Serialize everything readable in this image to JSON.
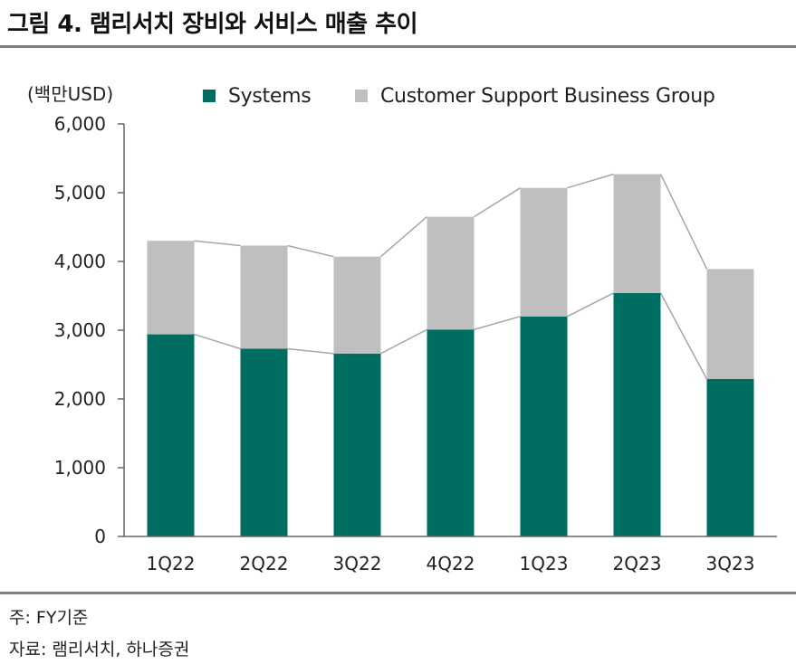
{
  "title": "그림 4. 램리서치 장비와 서비스 매출 추이",
  "unit_label": "(백만USD)",
  "notes": {
    "note": "주: FY기준",
    "source": "자료: 램리서치, 하나증권"
  },
  "colors": {
    "systems": "#006d61",
    "csbg": "#bfbfbf",
    "connector": "#a6a6a6",
    "axis": "#666666"
  },
  "chart_data": {
    "type": "bar",
    "stacked": true,
    "categories": [
      "1Q22",
      "2Q22",
      "3Q22",
      "4Q22",
      "1Q23",
      "2Q23",
      "3Q23"
    ],
    "series": [
      {
        "name": "Systems",
        "values": [
          2940,
          2730,
          2660,
          3010,
          3200,
          3540,
          2290
        ]
      },
      {
        "name": "Customer Support Business Group",
        "values": [
          1360,
          1500,
          1410,
          1640,
          1870,
          1730,
          1600
        ]
      }
    ],
    "ylim": [
      0,
      6000
    ],
    "yticks": [
      "0",
      "1,000",
      "2,000",
      "3,000",
      "4,000",
      "5,000",
      "6,000"
    ],
    "ytick_values": [
      0,
      1000,
      2000,
      3000,
      4000,
      5000,
      6000
    ],
    "grid": false,
    "legend_position": "top"
  }
}
